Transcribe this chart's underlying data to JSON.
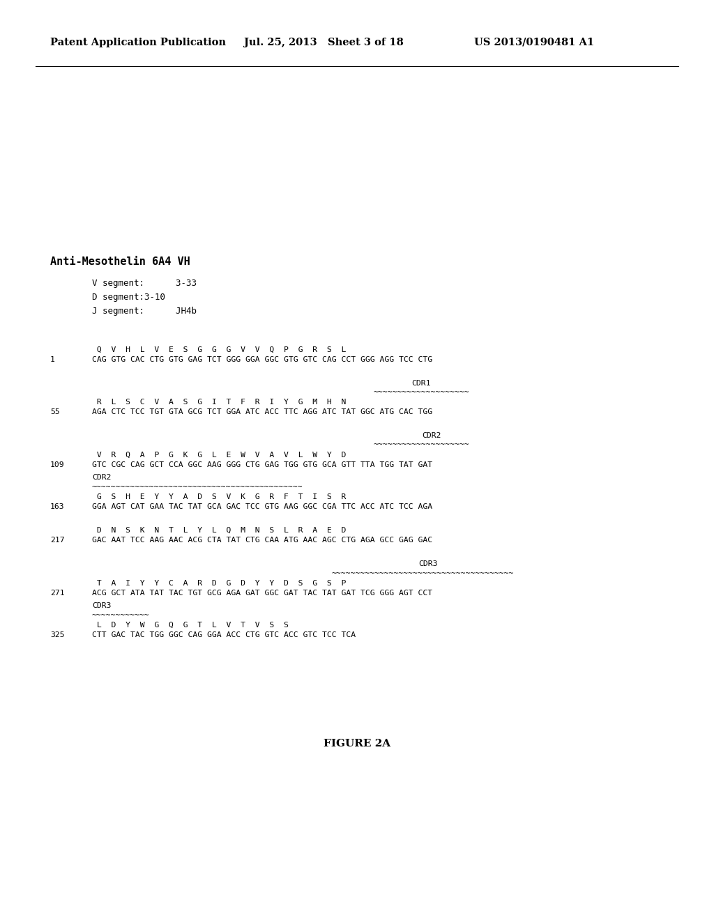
{
  "header_left": "Patent Application Publication",
  "header_mid": "Jul. 25, 2013   Sheet 3 of 18",
  "header_right": "US 2013/0190481 A1",
  "title": "Anti-Mesothelin 6A4 VH",
  "seg1": "V segment:      3-33",
  "seg2": "D segment:3-10",
  "seg3": "J segment:      JH4b",
  "figure_label": "FIGURE 2A",
  "bg_color": "#ffffff",
  "text_color": "#000000"
}
